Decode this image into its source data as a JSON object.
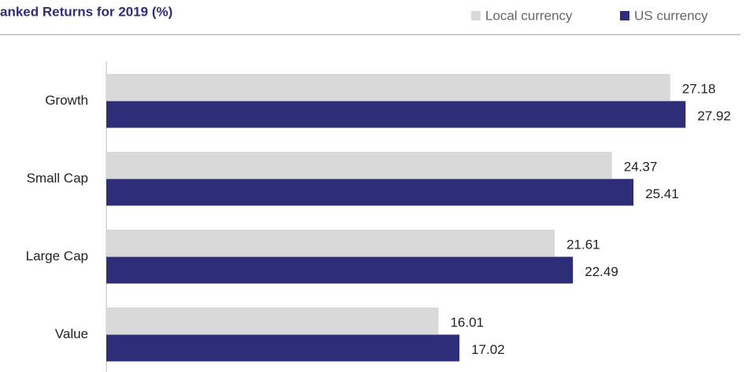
{
  "chart_data": {
    "type": "bar",
    "orientation": "horizontal",
    "title": "anked Returns for 2019 (%)",
    "categories": [
      "Growth",
      "Small Cap",
      "Large Cap",
      "Value"
    ],
    "series": [
      {
        "name": "Local currency",
        "color": "#d9d9d9",
        "values": [
          27.18,
          24.37,
          21.61,
          16.01
        ]
      },
      {
        "name": "US currency",
        "color": "#2e2e78",
        "values": [
          27.92,
          25.41,
          22.49,
          17.02
        ]
      }
    ],
    "xlim": [
      0,
      30
    ]
  }
}
